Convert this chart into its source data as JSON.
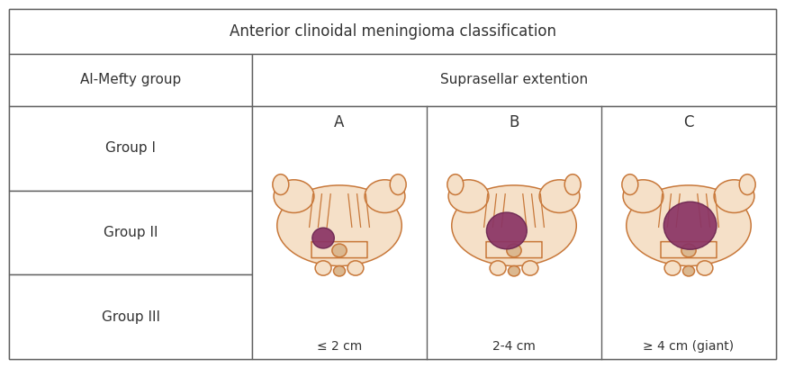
{
  "title": "Anterior clinoidal meningioma classification",
  "header_left": "Al-Mefty group",
  "header_right": "Suprasellar extention",
  "groups": [
    "Group I",
    "Group II",
    "Group III"
  ],
  "labels_abc": [
    "A",
    "B",
    "C"
  ],
  "labels_size": [
    "≤ 2 cm",
    "2-4 cm",
    "≥ 4 cm (giant)"
  ],
  "bg_color": "#ffffff",
  "border_color": "#606060",
  "text_color": "#333333",
  "title_fontsize": 12,
  "header_fontsize": 11,
  "group_fontsize": 11,
  "abc_fontsize": 12,
  "size_fontsize": 10,
  "skin_color": "#f5e0c8",
  "skin_outline": "#c8783a",
  "pituitary_color": "#dbb890",
  "tumor_color": "#8b3565"
}
